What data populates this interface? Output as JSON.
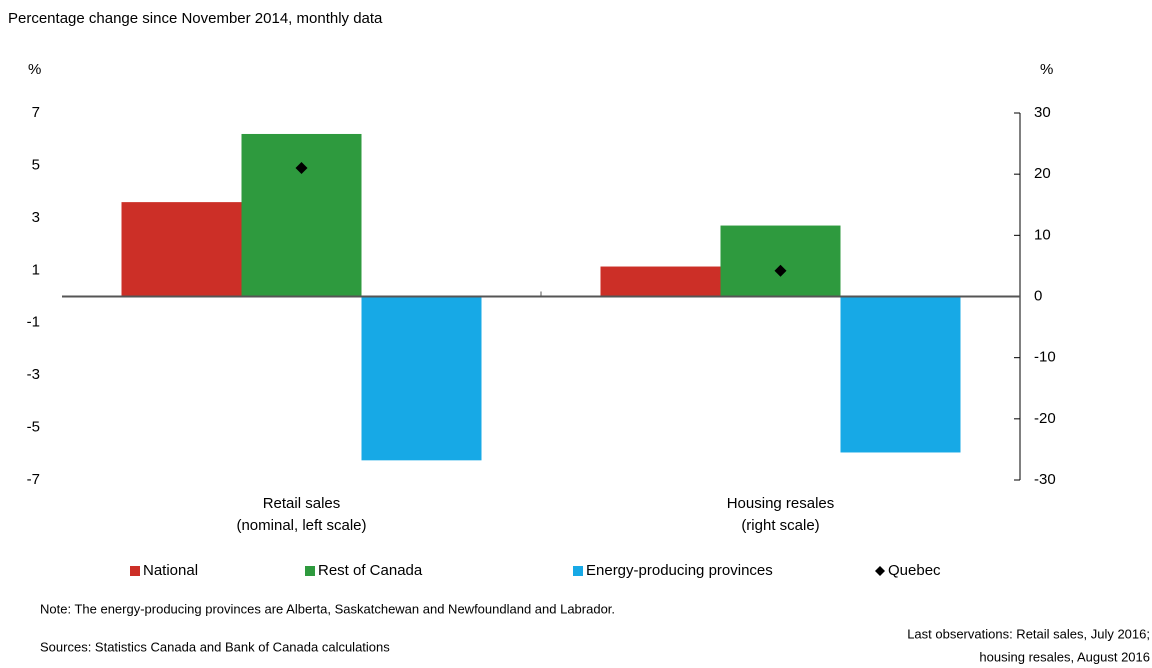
{
  "chart_data": {
    "type": "bar",
    "title": "Percentage change since November 2014, monthly data",
    "y_unit": "%",
    "y2_unit": "%",
    "categories": [
      [
        "Retail sales",
        "(nominal, left scale)"
      ],
      [
        "Housing resales",
        "(right scale)"
      ]
    ],
    "category_axes": [
      "y",
      "y2"
    ],
    "ylim": [
      -7,
      7
    ],
    "yticks": [
      -7,
      -5,
      -3,
      -1,
      1,
      3,
      5,
      7
    ],
    "y2lim": [
      -30,
      30
    ],
    "y2ticks": [
      -30,
      -20,
      -10,
      0,
      10,
      20,
      30
    ],
    "series": [
      {
        "name": "National",
        "color": "#cc2f27",
        "values": [
          3.6,
          4.9
        ]
      },
      {
        "name": "Rest of Canada",
        "color": "#2e9a3e",
        "values": [
          6.2,
          11.6
        ]
      },
      {
        "name": "Energy-producing provinces",
        "color": "#17a9e6",
        "values": [
          -6.25,
          -25.5
        ]
      },
      {
        "name": "Quebec",
        "color": "#000000",
        "marker": "diamond",
        "values": [
          4.9,
          4.2
        ]
      }
    ],
    "note": "Note: The energy-producing provinces are Alberta, Saskatchewan and Newfoundland and Labrador.",
    "sources": "Sources: Statistics Canada and Bank of Canada calculations",
    "last_observations": [
      "Last observations: Retail sales, July 2016;",
      "housing resales, August 2016"
    ]
  }
}
